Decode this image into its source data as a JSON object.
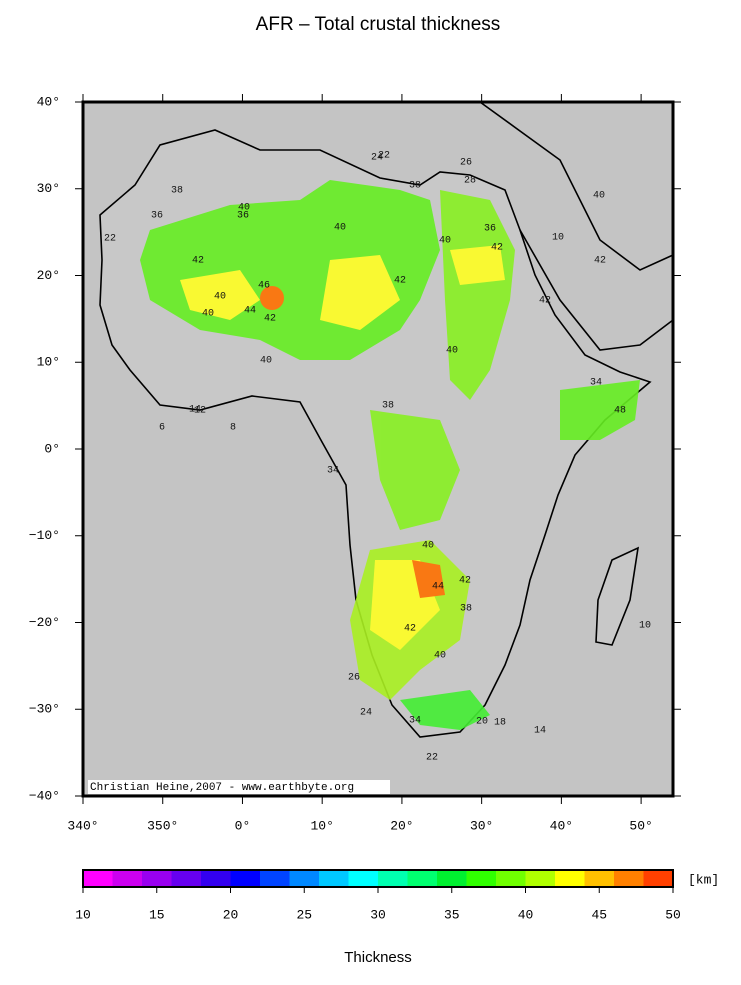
{
  "title": "AFR – Total crustal thickness",
  "map": {
    "lonlim": [
      -20,
      54
    ],
    "latlim": [
      -40,
      40
    ],
    "lat_ticks": [
      {
        "value": 40,
        "label": "40°"
      },
      {
        "value": 30,
        "label": "30°"
      },
      {
        "value": 20,
        "label": "20°"
      },
      {
        "value": 10,
        "label": "10°"
      },
      {
        "value": 0,
        "label": "0°"
      },
      {
        "value": -10,
        "label": "−10°"
      },
      {
        "value": -20,
        "label": "−20°"
      },
      {
        "value": -30,
        "label": "−30°"
      },
      {
        "value": -40,
        "label": "−40°"
      }
    ],
    "lon_ticks": [
      {
        "value": -20,
        "label": "340°"
      },
      {
        "value": -10,
        "label": "350°"
      },
      {
        "value": 0,
        "label": "0°"
      },
      {
        "value": 10,
        "label": "10°"
      },
      {
        "value": 20,
        "label": "20°"
      },
      {
        "value": 30,
        "label": "30°"
      },
      {
        "value": 40,
        "label": "40°"
      },
      {
        "value": 50,
        "label": "50°"
      }
    ],
    "credit": "Christian Heine,2007 - www.earthbyte.org",
    "contour_labels": [
      "36",
      "36",
      "38",
      "40",
      "40",
      "42",
      "40",
      "46",
      "42",
      "40",
      "44",
      "40",
      "42",
      "36",
      "40",
      "38",
      "42",
      "40",
      "38",
      "34",
      "40",
      "42",
      "26",
      "28",
      "22",
      "22",
      "24",
      "12",
      "14",
      "10",
      "42",
      "34",
      "48",
      "40",
      "44",
      "38",
      "42",
      "40",
      "34",
      "20",
      "18",
      "6",
      "8",
      "26",
      "24",
      "22",
      "14",
      "10",
      "42"
    ]
  },
  "colorbar": {
    "lim": [
      10,
      50
    ],
    "ticks": [
      10,
      15,
      20,
      25,
      30,
      35,
      40,
      45,
      50
    ],
    "unit": "[km]",
    "label": "Thickness",
    "colors": [
      "#ff00ff",
      "#cc00f0",
      "#9900f0",
      "#6600f0",
      "#3300f0",
      "#0000ff",
      "#0044ff",
      "#0088ff",
      "#00c8ff",
      "#00ffff",
      "#00ffb0",
      "#00ff70",
      "#00f030",
      "#30ff00",
      "#70ff00",
      "#b0ff00",
      "#ffff00",
      "#ffc000",
      "#ff8000",
      "#ff4000"
    ]
  }
}
